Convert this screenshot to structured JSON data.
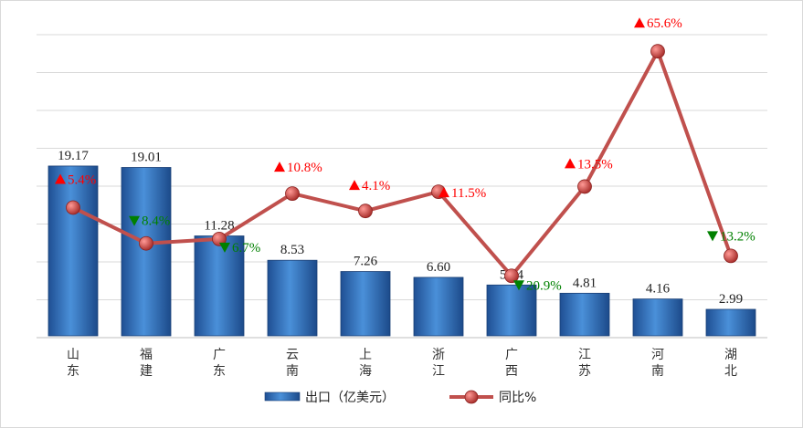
{
  "chart_data": {
    "type": "bar+line",
    "categories": [
      "山东",
      "福建",
      "广东",
      "云南",
      "上海",
      "浙江",
      "广西",
      "江苏",
      "河南",
      "湖北"
    ],
    "series": [
      {
        "name": "出口（亿美元）",
        "type": "bar",
        "values": [
          19.17,
          19.01,
          11.28,
          8.53,
          7.26,
          6.6,
          5.74,
          4.81,
          4.16,
          2.99
        ],
        "labels": [
          "19.17",
          "19.01",
          "11.28",
          "8.53",
          "7.26",
          "6.60",
          "5.74",
          "4.81",
          "4.16",
          "2.99"
        ],
        "color": "#2e6ab8"
      },
      {
        "name": "同比%",
        "type": "line",
        "values": [
          5.4,
          -8.4,
          -6.7,
          10.8,
          4.1,
          11.5,
          -20.9,
          13.5,
          65.6,
          -13.2
        ],
        "labels": [
          "5.4%",
          "8.4%",
          "6.7%",
          "10.8%",
          "4.1%",
          "11.5%",
          "20.9%",
          "13.5%",
          "65.6%",
          "13.2%"
        ],
        "color": "#c0504d"
      }
    ],
    "colors": {
      "up": "#ff0000",
      "down": "#008000",
      "grid": "#d9d9d9"
    },
    "legend_position": "bottom"
  }
}
